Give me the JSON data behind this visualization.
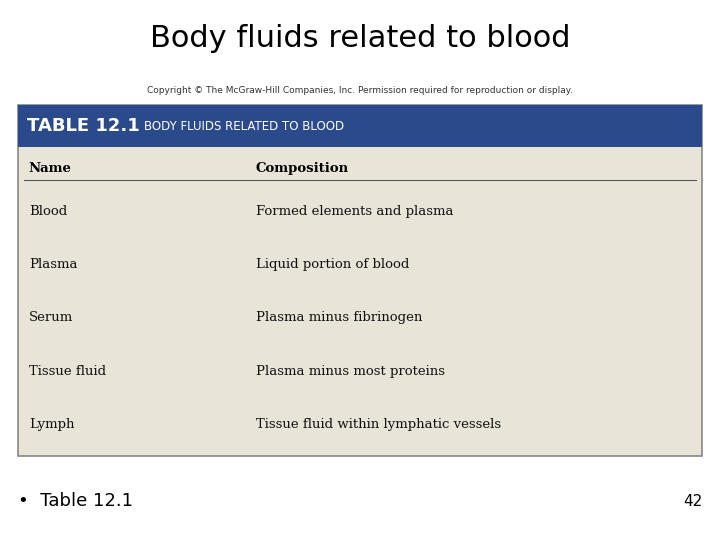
{
  "title": "Body fluids related to blood",
  "copyright_text": "Copyright © The McGraw-Hill Companies, Inc. Permission required for reproduction or display.",
  "table_header_bg": "#2b4a8b",
  "table_header_text_color": "#ffffff",
  "table_header_label1": "TABLE 12.1",
  "table_header_label2": "BODY FLUIDS RELATED TO BLOOD",
  "table_bg": "#e8e5d8",
  "table_border_color": "#888888",
  "col_headers": [
    "Name",
    "Composition"
  ],
  "rows": [
    [
      "Blood",
      "Formed elements and plasma"
    ],
    [
      "Plasma",
      "Liquid portion of blood"
    ],
    [
      "Serum",
      "Plasma minus fibrinogen"
    ],
    [
      "Tissue fluid",
      "Plasma minus most proteins"
    ],
    [
      "Lymph",
      "Tissue fluid within lymphatic vessels"
    ]
  ],
  "footer_bullet": "•  Table 12.1",
  "footer_number": "42",
  "bg_color": "#ffffff",
  "title_fontsize": 22,
  "copyright_fontsize": 6.5,
  "header_label1_fontsize": 13,
  "header_label2_fontsize": 8.5,
  "col_header_fontsize": 9.5,
  "row_fontsize": 9.5,
  "footer_fontsize": 13,
  "footer_number_fontsize": 11
}
